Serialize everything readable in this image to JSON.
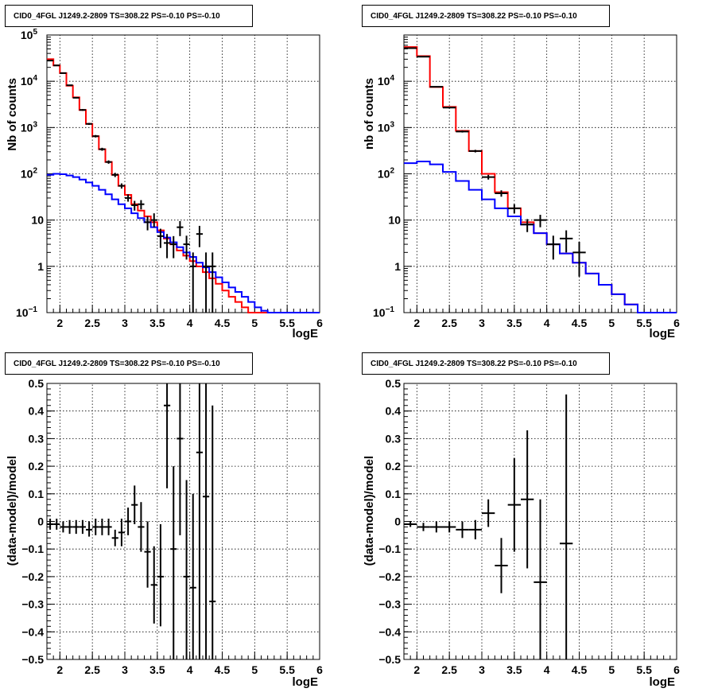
{
  "chart_data": [
    {
      "type": "step-histogram",
      "title": "CID0_4FGL J1249.2-2809 TS=308.22 PS=-0.10 PS=-0.10",
      "xlabel": "logE",
      "ylabel": "Nb of counts",
      "xlim": [
        1.8,
        6.0
      ],
      "ylim": [
        0.1,
        100000
      ],
      "yscale": "log",
      "grid": true,
      "x_ticks": [
        "2",
        "2.5",
        "3",
        "3.5",
        "4",
        "4.5",
        "5",
        "5.5",
        "6"
      ],
      "y_ticks": [
        {
          "base": "10",
          "exp": "−1"
        },
        {
          "base": "1",
          "exp": ""
        },
        {
          "base": "10",
          "exp": ""
        },
        {
          "base": "10",
          "exp": "2"
        },
        {
          "base": "10",
          "exp": "3"
        },
        {
          "base": "10",
          "exp": "4"
        },
        {
          "base": "10",
          "exp": "5"
        }
      ],
      "bin_edges": [
        1.8,
        1.9,
        2.0,
        2.1,
        2.2,
        2.3,
        2.4,
        2.5,
        2.6,
        2.7,
        2.8,
        2.9,
        3.0,
        3.1,
        3.2,
        3.3,
        3.4,
        3.5,
        3.6,
        3.7,
        3.8,
        3.9,
        4.0,
        4.1,
        4.2,
        4.3,
        4.4,
        4.5,
        4.6,
        4.7,
        4.8,
        4.9,
        5.0,
        5.1,
        5.2,
        5.3,
        5.4,
        5.5,
        5.6,
        5.7,
        5.8,
        5.9,
        6.0
      ],
      "series": [
        {
          "color": "#ff0000",
          "values": [
            30000,
            22000,
            15000,
            8000,
            4500,
            2400,
            1200,
            650,
            340,
            180,
            95,
            55,
            35,
            22,
            16,
            12,
            9,
            6,
            4,
            3,
            2.2,
            1.7,
            1.3,
            1.0,
            0.75,
            0.55,
            0.42,
            0.3,
            0.22,
            0.17,
            0.13,
            0.1,
            0.1,
            0.1,
            0.1,
            0.1,
            0.1,
            0.1,
            0.1,
            0.1,
            0.1,
            0.1
          ]
        },
        {
          "color": "#0000ff",
          "values": [
            95,
            100,
            98,
            92,
            85,
            75,
            65,
            55,
            45,
            36,
            28,
            22,
            18,
            14,
            11,
            9,
            7,
            5.5,
            4.2,
            3.3,
            2.6,
            2.0,
            1.6,
            1.2,
            0.95,
            0.75,
            0.58,
            0.45,
            0.35,
            0.28,
            0.22,
            0.17,
            0.13,
            0.11,
            0.1,
            0.1,
            0.1,
            0.1,
            0.1,
            0.1,
            0.1,
            0.1
          ]
        }
      ],
      "data_points": [
        {
          "x": 1.85,
          "y": 28000,
          "xerr": 0.05,
          "ylo": 27700,
          "yhi": 28300
        },
        {
          "x": 1.95,
          "y": 22000,
          "xerr": 0.05,
          "ylo": 21700,
          "yhi": 22300
        },
        {
          "x": 2.05,
          "y": 15000,
          "xerr": 0.05,
          "ylo": 14750,
          "yhi": 15250
        },
        {
          "x": 2.15,
          "y": 8200,
          "xerr": 0.05,
          "ylo": 8000,
          "yhi": 8400
        },
        {
          "x": 2.25,
          "y": 4400,
          "xerr": 0.05,
          "ylo": 4270,
          "yhi": 4530
        },
        {
          "x": 2.35,
          "y": 2400,
          "xerr": 0.05,
          "ylo": 2300,
          "yhi": 2500
        },
        {
          "x": 2.45,
          "y": 1200,
          "xerr": 0.05,
          "ylo": 1140,
          "yhi": 1260
        },
        {
          "x": 2.55,
          "y": 650,
          "xerr": 0.05,
          "ylo": 610,
          "yhi": 690
        },
        {
          "x": 2.65,
          "y": 340,
          "xerr": 0.05,
          "ylo": 315,
          "yhi": 365
        },
        {
          "x": 2.75,
          "y": 180,
          "xerr": 0.05,
          "ylo": 165,
          "yhi": 195
        },
        {
          "x": 2.85,
          "y": 95,
          "xerr": 0.05,
          "ylo": 85,
          "yhi": 105
        },
        {
          "x": 2.95,
          "y": 55,
          "xerr": 0.05,
          "ylo": 48,
          "yhi": 62
        },
        {
          "x": 3.05,
          "y": 30,
          "xerr": 0.05,
          "ylo": 25,
          "yhi": 36
        },
        {
          "x": 3.15,
          "y": 21,
          "xerr": 0.05,
          "ylo": 16,
          "yhi": 26
        },
        {
          "x": 3.25,
          "y": 22,
          "xerr": 0.05,
          "ylo": 17,
          "yhi": 27
        },
        {
          "x": 3.35,
          "y": 9,
          "xerr": 0.05,
          "ylo": 6,
          "yhi": 12
        },
        {
          "x": 3.45,
          "y": 10,
          "xerr": 0.05,
          "ylo": 7,
          "yhi": 14
        },
        {
          "x": 3.55,
          "y": 4.5,
          "xerr": 0.05,
          "ylo": 2.5,
          "yhi": 6.5
        },
        {
          "x": 3.65,
          "y": 3.2,
          "xerr": 0.05,
          "ylo": 1.5,
          "yhi": 5
        },
        {
          "x": 3.75,
          "y": 3.0,
          "xerr": 0.05,
          "ylo": 1.5,
          "yhi": 4.5
        },
        {
          "x": 3.85,
          "y": 7.0,
          "xerr": 0.05,
          "ylo": 4.5,
          "yhi": 9.5
        },
        {
          "x": 3.95,
          "y": 3.0,
          "xerr": 0.05,
          "ylo": 1.4,
          "yhi": 4.6
        },
        {
          "x": 4.05,
          "y": 1.0,
          "xerr": 0.05,
          "ylo": 0.1,
          "yhi": 2.0
        },
        {
          "x": 4.15,
          "y": 5.0,
          "xerr": 0.05,
          "ylo": 2.6,
          "yhi": 7.5
        },
        {
          "x": 4.25,
          "y": 1.0,
          "xerr": 0.05,
          "ylo": 0.1,
          "yhi": 2.0
        },
        {
          "x": 4.35,
          "y": 1.0,
          "xerr": 0.05,
          "ylo": 0.1,
          "yhi": 2.0
        }
      ]
    },
    {
      "type": "step-histogram",
      "title": "CID0_4FGL J1249.2-2809 TS=308.22 PS=-0.10 PS=-0.10",
      "xlabel": "logE",
      "ylabel": "nb of counts",
      "xlim": [
        1.8,
        6.0
      ],
      "ylim": [
        0.1,
        100000
      ],
      "yscale": "log",
      "grid": true,
      "x_ticks": [
        "2",
        "2.5",
        "3",
        "3.5",
        "4",
        "4.5",
        "5",
        "5.5",
        "6"
      ],
      "y_ticks": [
        {
          "base": "10",
          "exp": "−1"
        },
        {
          "base": "1",
          "exp": ""
        },
        {
          "base": "10",
          "exp": ""
        },
        {
          "base": "10",
          "exp": "2"
        },
        {
          "base": "10",
          "exp": "3"
        },
        {
          "base": "10",
          "exp": "4"
        }
      ],
      "bin_edges": [
        1.8,
        2.0,
        2.2,
        2.4,
        2.6,
        2.8,
        3.0,
        3.2,
        3.4,
        3.6,
        3.8,
        4.0,
        4.2,
        4.4,
        4.6,
        4.8,
        5.0,
        5.2,
        5.4,
        5.6,
        5.8,
        6.0
      ],
      "series": [
        {
          "color": "#ff0000",
          "values": [
            55000,
            35000,
            7500,
            2800,
            850,
            310,
            100,
            40,
            18,
            9,
            5.2,
            3.0,
            1.9,
            1.2,
            0.7,
            0.4,
            0.25,
            0.15,
            0.1,
            0.1,
            0.1
          ]
        },
        {
          "color": "#0000ff",
          "values": [
            170,
            185,
            160,
            110,
            70,
            45,
            28,
            18,
            12,
            8,
            5.2,
            3.0,
            1.9,
            1.2,
            0.7,
            0.4,
            0.25,
            0.15,
            0.1,
            0.1,
            0.1
          ]
        }
      ],
      "data_points": [
        {
          "x": 1.9,
          "y": 52000,
          "xerr": 0.1,
          "ylo": 51500,
          "yhi": 52500
        },
        {
          "x": 2.1,
          "y": 34000,
          "xerr": 0.1,
          "ylo": 33600,
          "yhi": 34400
        },
        {
          "x": 2.3,
          "y": 7600,
          "xerr": 0.1,
          "ylo": 7400,
          "yhi": 7800
        },
        {
          "x": 2.5,
          "y": 2700,
          "xerr": 0.1,
          "ylo": 2600,
          "yhi": 2800
        },
        {
          "x": 2.7,
          "y": 820,
          "xerr": 0.1,
          "ylo": 780,
          "yhi": 860
        },
        {
          "x": 2.9,
          "y": 310,
          "xerr": 0.1,
          "ylo": 290,
          "yhi": 330
        },
        {
          "x": 3.1,
          "y": 85,
          "xerr": 0.1,
          "ylo": 75,
          "yhi": 95
        },
        {
          "x": 3.3,
          "y": 38,
          "xerr": 0.1,
          "ylo": 32,
          "yhi": 44
        },
        {
          "x": 3.5,
          "y": 18,
          "xerr": 0.1,
          "ylo": 14,
          "yhi": 22
        },
        {
          "x": 3.7,
          "y": 8,
          "xerr": 0.1,
          "ylo": 5.5,
          "yhi": 10.5
        },
        {
          "x": 3.9,
          "y": 10,
          "xerr": 0.1,
          "ylo": 7,
          "yhi": 13
        },
        {
          "x": 4.1,
          "y": 3.0,
          "xerr": 0.1,
          "ylo": 1.4,
          "yhi": 4.6
        },
        {
          "x": 4.3,
          "y": 4.0,
          "xerr": 0.1,
          "ylo": 2.0,
          "yhi": 6.0
        },
        {
          "x": 4.5,
          "y": 2.0,
          "xerr": 0.1,
          "ylo": 0.6,
          "yhi": 3.4
        }
      ]
    },
    {
      "type": "scatter-errorbar",
      "title": "CID0_4FGL J1249.2-2809 TS=308.22 PS=-0.10 PS=-0.10",
      "xlabel": "logE",
      "ylabel": "(data-model)/model",
      "xlim": [
        1.8,
        6.0
      ],
      "ylim": [
        -0.5,
        0.5
      ],
      "grid": true,
      "x_ticks": [
        "2",
        "2.5",
        "3",
        "3.5",
        "4",
        "4.5",
        "5",
        "5.5",
        "6"
      ],
      "y_ticks": [
        "−0.5",
        "−0.4",
        "−0.3",
        "−0.2",
        "−0.1",
        "0",
        "0.1",
        "0.2",
        "0.3",
        "0.4",
        "0.5"
      ],
      "data_points": [
        {
          "x": 1.85,
          "y": -0.01,
          "xerr": 0.05,
          "ylo": -0.03,
          "yhi": 0.01
        },
        {
          "x": 1.95,
          "y": -0.01,
          "xerr": 0.05,
          "ylo": -0.03,
          "yhi": 0.01
        },
        {
          "x": 2.05,
          "y": -0.02,
          "xerr": 0.05,
          "ylo": -0.04,
          "yhi": 0.0
        },
        {
          "x": 2.15,
          "y": -0.02,
          "xerr": 0.05,
          "ylo": -0.045,
          "yhi": 0.005
        },
        {
          "x": 2.25,
          "y": -0.02,
          "xerr": 0.05,
          "ylo": -0.045,
          "yhi": 0.005
        },
        {
          "x": 2.35,
          "y": -0.02,
          "xerr": 0.05,
          "ylo": -0.045,
          "yhi": 0.005
        },
        {
          "x": 2.45,
          "y": -0.03,
          "xerr": 0.05,
          "ylo": -0.055,
          "yhi": 0.0
        },
        {
          "x": 2.55,
          "y": -0.02,
          "xerr": 0.05,
          "ylo": -0.05,
          "yhi": 0.01
        },
        {
          "x": 2.65,
          "y": -0.02,
          "xerr": 0.05,
          "ylo": -0.05,
          "yhi": 0.01
        },
        {
          "x": 2.75,
          "y": -0.02,
          "xerr": 0.05,
          "ylo": -0.05,
          "yhi": 0.01
        },
        {
          "x": 2.85,
          "y": -0.06,
          "xerr": 0.05,
          "ylo": -0.09,
          "yhi": -0.03
        },
        {
          "x": 2.95,
          "y": -0.04,
          "xerr": 0.05,
          "ylo": -0.09,
          "yhi": 0.01
        },
        {
          "x": 3.05,
          "y": 0.0,
          "xerr": 0.05,
          "ylo": -0.05,
          "yhi": 0.05
        },
        {
          "x": 3.15,
          "y": 0.06,
          "xerr": 0.05,
          "ylo": -0.01,
          "yhi": 0.13
        },
        {
          "x": 3.25,
          "y": -0.02,
          "xerr": 0.05,
          "ylo": -0.11,
          "yhi": 0.07
        },
        {
          "x": 3.35,
          "y": -0.11,
          "xerr": 0.05,
          "ylo": -0.24,
          "yhi": 0.0
        },
        {
          "x": 3.45,
          "y": -0.23,
          "xerr": 0.05,
          "ylo": -0.37,
          "yhi": -0.09
        },
        {
          "x": 3.55,
          "y": -0.2,
          "xerr": 0.05,
          "ylo": -0.38,
          "yhi": -0.01
        },
        {
          "x": 3.65,
          "y": 0.42,
          "xerr": 0.05,
          "ylo": 0.12,
          "yhi": 0.5
        },
        {
          "x": 3.75,
          "y": -0.1,
          "xerr": 0.05,
          "ylo": -0.5,
          "yhi": 0.2
        },
        {
          "x": 3.85,
          "y": 0.3,
          "xerr": 0.05,
          "ylo": -0.05,
          "yhi": 0.5
        },
        {
          "x": 3.95,
          "y": -0.2,
          "xerr": 0.05,
          "ylo": -0.5,
          "yhi": 0.15
        },
        {
          "x": 4.05,
          "y": -0.24,
          "xerr": 0.05,
          "ylo": -0.5,
          "yhi": 0.1
        },
        {
          "x": 4.15,
          "y": 0.25,
          "xerr": 0.05,
          "ylo": -0.5,
          "yhi": 0.5
        },
        {
          "x": 4.25,
          "y": 0.09,
          "xerr": 0.05,
          "ylo": -0.5,
          "yhi": 0.5
        },
        {
          "x": 4.35,
          "y": -0.29,
          "xerr": 0.05,
          "ylo": -0.5,
          "yhi": 0.42
        }
      ]
    },
    {
      "type": "scatter-errorbar",
      "title": "CID0_4FGL J1249.2-2809 TS=308.22 PS=-0.10 PS=-0.10",
      "xlabel": "logE",
      "ylabel": "(data-model)/model",
      "xlim": [
        1.8,
        6.0
      ],
      "ylim": [
        -0.5,
        0.5
      ],
      "grid": true,
      "x_ticks": [
        "2",
        "2.5",
        "3",
        "3.5",
        "4",
        "4.5",
        "5",
        "5.5",
        "6"
      ],
      "y_ticks": [
        "−0.5",
        "−0.4",
        "−0.3",
        "−0.2",
        "−0.1",
        "0",
        "0.1",
        "0.2",
        "0.3",
        "0.4",
        "0.5"
      ],
      "data_points": [
        {
          "x": 1.9,
          "y": -0.01,
          "xerr": 0.1,
          "ylo": -0.02,
          "yhi": 0.0
        },
        {
          "x": 2.1,
          "y": -0.02,
          "xerr": 0.1,
          "ylo": -0.035,
          "yhi": -0.005
        },
        {
          "x": 2.3,
          "y": -0.02,
          "xerr": 0.1,
          "ylo": -0.04,
          "yhi": 0.0
        },
        {
          "x": 2.5,
          "y": -0.02,
          "xerr": 0.1,
          "ylo": -0.04,
          "yhi": 0.0
        },
        {
          "x": 2.7,
          "y": -0.03,
          "xerr": 0.1,
          "ylo": -0.06,
          "yhi": 0.0
        },
        {
          "x": 2.9,
          "y": -0.03,
          "xerr": 0.1,
          "ylo": -0.065,
          "yhi": 0.005
        },
        {
          "x": 3.1,
          "y": 0.03,
          "xerr": 0.1,
          "ylo": -0.02,
          "yhi": 0.08
        },
        {
          "x": 3.3,
          "y": -0.16,
          "xerr": 0.1,
          "ylo": -0.26,
          "yhi": -0.06
        },
        {
          "x": 3.5,
          "y": 0.06,
          "xerr": 0.1,
          "ylo": -0.11,
          "yhi": 0.23
        },
        {
          "x": 3.7,
          "y": 0.08,
          "xerr": 0.1,
          "ylo": -0.17,
          "yhi": 0.33
        },
        {
          "x": 3.9,
          "y": -0.22,
          "xerr": 0.1,
          "ylo": -0.5,
          "yhi": 0.08
        },
        {
          "x": 4.3,
          "y": -0.08,
          "xerr": 0.1,
          "ylo": -0.5,
          "yhi": 0.46
        }
      ]
    }
  ]
}
